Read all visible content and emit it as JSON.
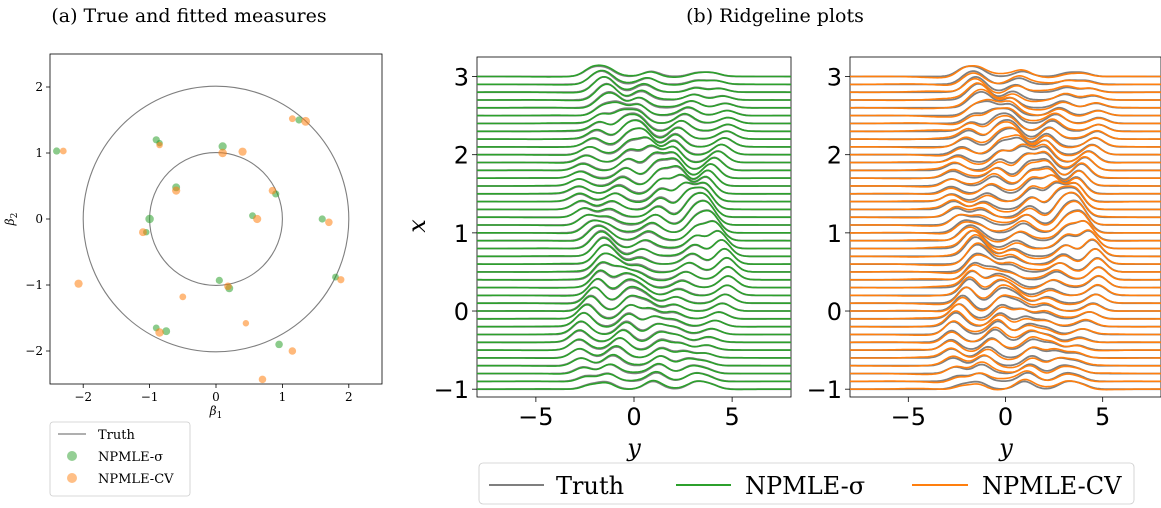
{
  "titles": {
    "a": "(a) True and fitted measures",
    "b": "(b) Ridgeline plots"
  },
  "colors": {
    "truth": "#7f7f7f",
    "npmle_sigma": "#2ca02c",
    "npmle_cv": "#ff7f0e"
  },
  "legend_small": {
    "truth": "Truth",
    "npmle_sigma": "NPMLE-σ",
    "npmle_cv": "NPMLE-CV"
  },
  "legend_big": {
    "truth": "Truth",
    "npmle_sigma": "NPMLE-σ",
    "npmle_cv": "NPMLE-CV"
  },
  "chart_data": [
    {
      "type": "scatter",
      "title": "(a) True and fitted measures",
      "xlabel": "β1",
      "ylabel": "β2",
      "xlim": [
        -2.5,
        2.5
      ],
      "ylim": [
        -2.5,
        2.5
      ],
      "xticks": [
        -2,
        -1,
        0,
        1,
        2
      ],
      "yticks": [
        -2,
        -1,
        0,
        1,
        2
      ],
      "grid": false,
      "legend_position": "below",
      "truth_circles": [
        {
          "radius": 1
        },
        {
          "radius": 2
        }
      ],
      "series": [
        {
          "name": "NPMLE-σ",
          "color": "#2ca02c",
          "points": [
            {
              "x": -2.4,
              "y": 1.03,
              "w": 1
            },
            {
              "x": -0.9,
              "y": 1.2,
              "w": 1
            },
            {
              "x": -0.85,
              "y": 1.15,
              "w": 0.8
            },
            {
              "x": 0.1,
              "y": 1.1,
              "w": 1.3
            },
            {
              "x": 1.25,
              "y": 1.5,
              "w": 1
            },
            {
              "x": -0.6,
              "y": 0.48,
              "w": 1.2
            },
            {
              "x": 0.9,
              "y": 0.38,
              "w": 1
            },
            {
              "x": -1.0,
              "y": 0.0,
              "w": 1.4
            },
            {
              "x": -1.05,
              "y": -0.2,
              "w": 0.8
            },
            {
              "x": 0.55,
              "y": 0.05,
              "w": 0.9
            },
            {
              "x": 1.6,
              "y": 0.0,
              "w": 1
            },
            {
              "x": 0.05,
              "y": -0.93,
              "w": 1
            },
            {
              "x": 0.2,
              "y": -1.05,
              "w": 1.2
            },
            {
              "x": 1.8,
              "y": -0.88,
              "w": 0.9
            },
            {
              "x": -0.75,
              "y": -1.7,
              "w": 1.2
            },
            {
              "x": -0.9,
              "y": -1.65,
              "w": 0.9
            },
            {
              "x": 0.95,
              "y": -1.9,
              "w": 1.1
            }
          ]
        },
        {
          "name": "NPMLE-CV",
          "color": "#ff7f0e",
          "points": [
            {
              "x": -2.3,
              "y": 1.03,
              "w": 0.9
            },
            {
              "x": 1.15,
              "y": 1.52,
              "w": 0.9
            },
            {
              "x": 1.35,
              "y": 1.48,
              "w": 1.5
            },
            {
              "x": 0.1,
              "y": 1.0,
              "w": 1.4
            },
            {
              "x": 0.4,
              "y": 1.02,
              "w": 1.3
            },
            {
              "x": -0.85,
              "y": 1.12,
              "w": 0.8
            },
            {
              "x": -0.6,
              "y": 0.43,
              "w": 1.3
            },
            {
              "x": 0.85,
              "y": 0.43,
              "w": 1.1
            },
            {
              "x": -1.1,
              "y": -0.2,
              "w": 1.2
            },
            {
              "x": 0.62,
              "y": 0.0,
              "w": 1.3
            },
            {
              "x": 1.7,
              "y": -0.05,
              "w": 1.1
            },
            {
              "x": 0.18,
              "y": -1.02,
              "w": 1.1
            },
            {
              "x": -2.07,
              "y": -0.98,
              "w": 1.3
            },
            {
              "x": -0.5,
              "y": -1.18,
              "w": 0.9
            },
            {
              "x": 1.88,
              "y": -0.92,
              "w": 1
            },
            {
              "x": 0.45,
              "y": -1.58,
              "w": 0.8
            },
            {
              "x": -0.85,
              "y": -1.72,
              "w": 1.4
            },
            {
              "x": 1.15,
              "y": -2.0,
              "w": 1.1
            },
            {
              "x": 0.7,
              "y": -2.43,
              "w": 1.1
            }
          ]
        }
      ]
    },
    {
      "type": "line",
      "title": "(b) Ridgeline plots",
      "xlabel": "y",
      "ylabel": "x",
      "xlim": [
        -8,
        8
      ],
      "ylim": [
        -1.1,
        3.25
      ],
      "xticks": [
        -5,
        0,
        5
      ],
      "yticks": [
        -1,
        0,
        1,
        2,
        3
      ],
      "ridge_count": 41,
      "x_range_of_ridges": [
        -1,
        3
      ],
      "series": [
        {
          "name": "Truth",
          "color": "#7f7f7f"
        },
        {
          "name": "NPMLE-σ",
          "color": "#2ca02c"
        }
      ]
    },
    {
      "type": "line",
      "xlabel": "y",
      "xlim": [
        -8,
        8
      ],
      "ylim": [
        -1.1,
        3.25
      ],
      "xticks": [
        -5,
        0,
        5
      ],
      "yticks": [
        -1,
        0,
        1,
        2,
        3
      ],
      "ridge_count": 41,
      "x_range_of_ridges": [
        -1,
        3
      ],
      "series": [
        {
          "name": "Truth",
          "color": "#7f7f7f"
        },
        {
          "name": "NPMLE-CV",
          "color": "#ff7f0e"
        }
      ]
    }
  ]
}
